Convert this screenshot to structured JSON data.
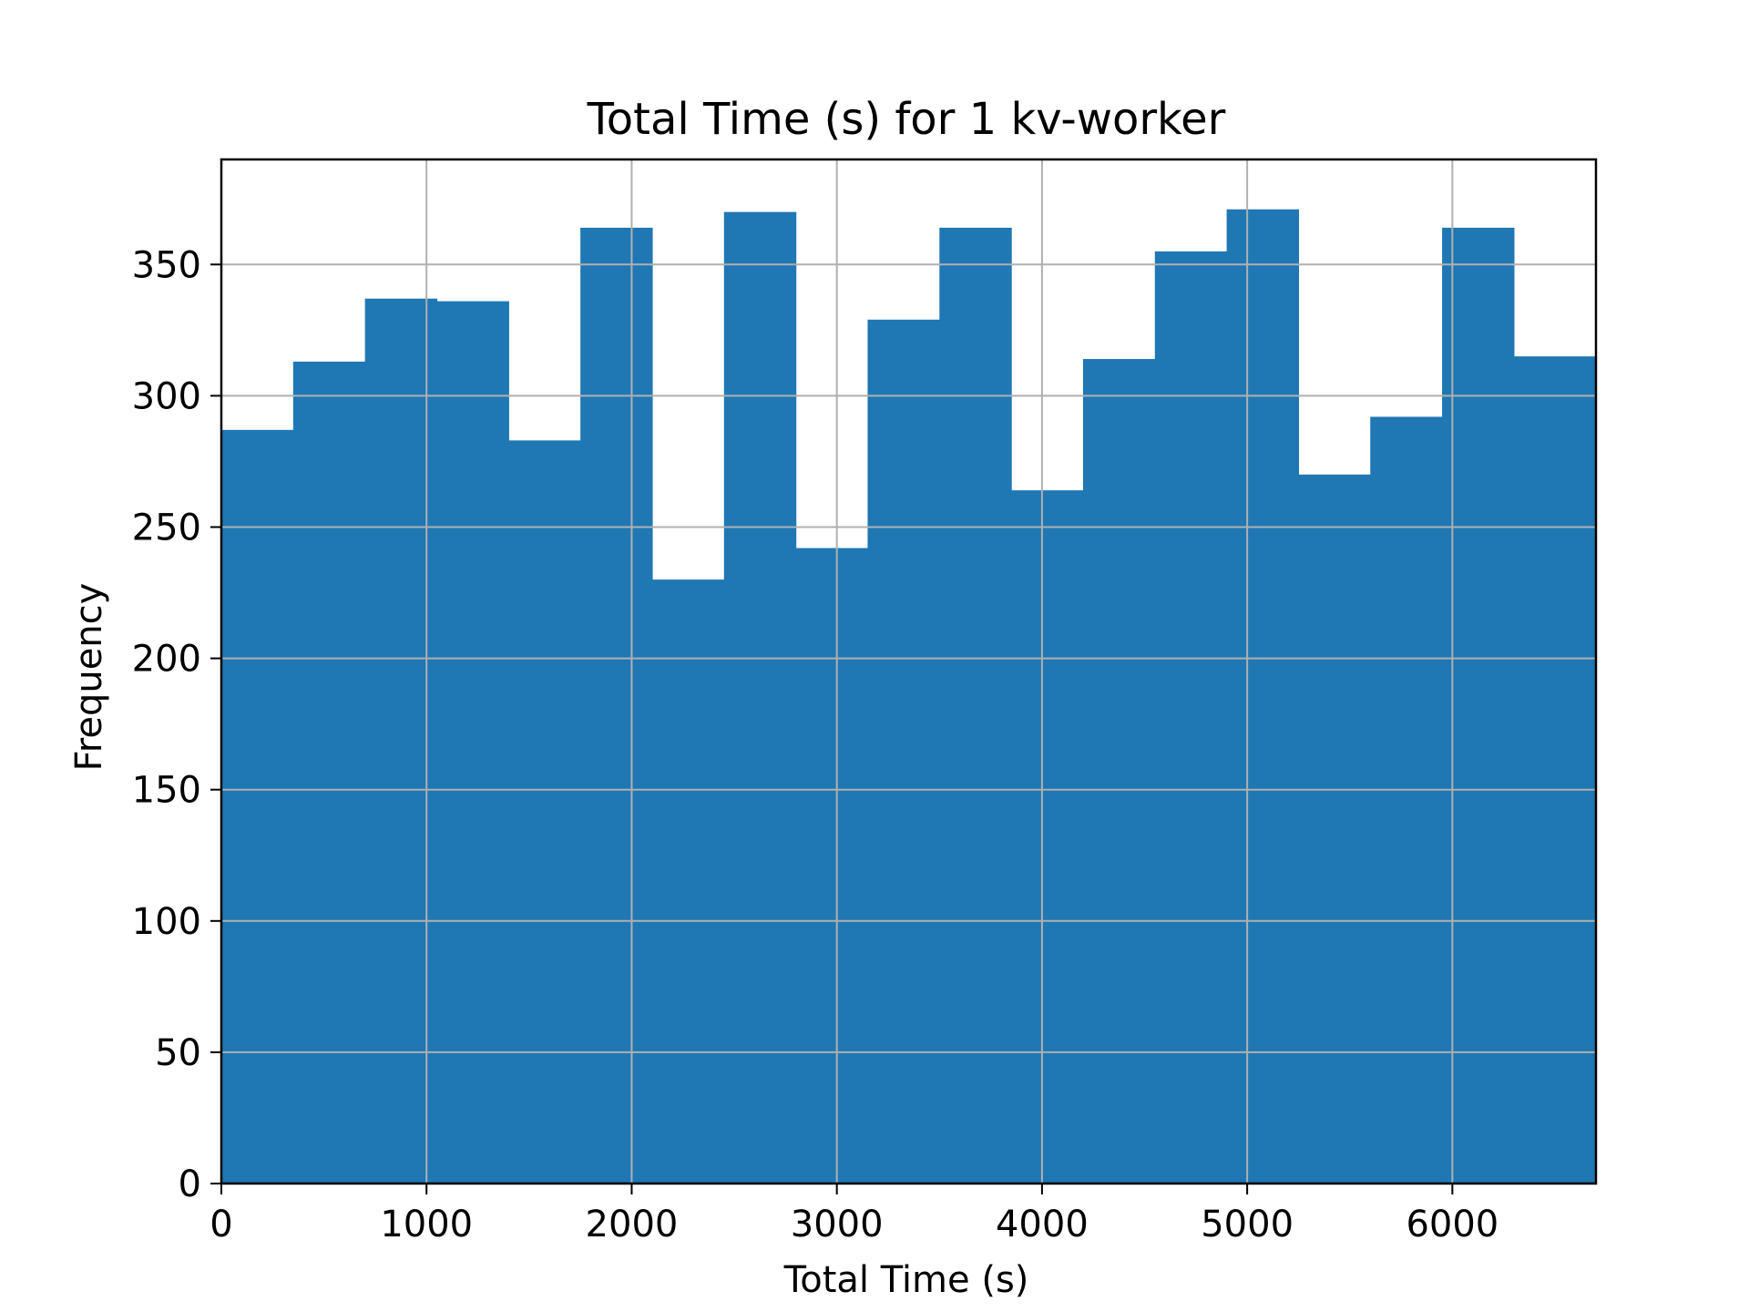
{
  "chart_data": {
    "type": "bar",
    "title": "Total Time (s) for 1 kv-worker",
    "xlabel": "Total Time (s)",
    "ylabel": "Frequency",
    "xlim": [
      0,
      6700
    ],
    "ylim": [
      0,
      390
    ],
    "grid": true,
    "bar_color": "#1f77b4",
    "bins": [
      {
        "start": 0,
        "end": 350,
        "value": 287
      },
      {
        "start": 350,
        "end": 700,
        "value": 313
      },
      {
        "start": 700,
        "end": 1050,
        "value": 337
      },
      {
        "start": 1050,
        "end": 1400,
        "value": 336
      },
      {
        "start": 1400,
        "end": 1750,
        "value": 283
      },
      {
        "start": 1750,
        "end": 2100,
        "value": 364
      },
      {
        "start": 2100,
        "end": 2450,
        "value": 230
      },
      {
        "start": 2450,
        "end": 2800,
        "value": 370
      },
      {
        "start": 2800,
        "end": 3150,
        "value": 242
      },
      {
        "start": 3150,
        "end": 3500,
        "value": 329
      },
      {
        "start": 3500,
        "end": 3850,
        "value": 364
      },
      {
        "start": 3850,
        "end": 4200,
        "value": 264
      },
      {
        "start": 4200,
        "end": 4550,
        "value": 314
      },
      {
        "start": 4550,
        "end": 4900,
        "value": 355
      },
      {
        "start": 4900,
        "end": 5250,
        "value": 371
      },
      {
        "start": 5250,
        "end": 5600,
        "value": 270
      },
      {
        "start": 5600,
        "end": 5950,
        "value": 292
      },
      {
        "start": 5950,
        "end": 6300,
        "value": 364
      },
      {
        "start": 6300,
        "end": 6700,
        "value": 315
      }
    ],
    "xticks": [
      0,
      1000,
      2000,
      3000,
      4000,
      5000,
      6000
    ],
    "xtick_labels": [
      "0",
      "1000",
      "2000",
      "3000",
      "4000",
      "5000",
      "6000"
    ],
    "yticks": [
      0,
      50,
      100,
      150,
      200,
      250,
      300,
      350
    ],
    "ytick_labels": [
      "0",
      "50",
      "100",
      "150",
      "200",
      "250",
      "300",
      "350"
    ]
  }
}
